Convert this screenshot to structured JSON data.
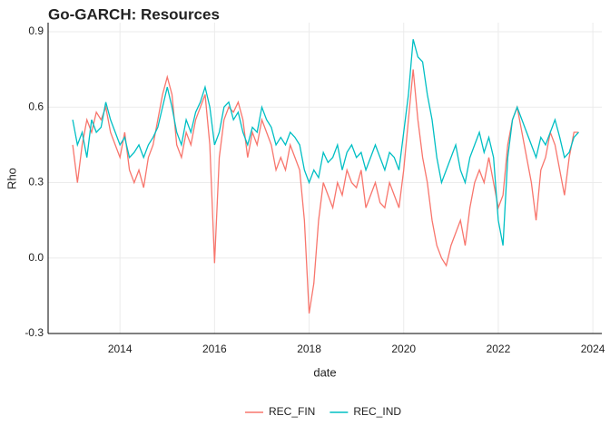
{
  "chart_data": {
    "type": "line",
    "title": "Go-GARCH: Resources",
    "x_label": "date",
    "y_label": "Rho",
    "x": [
      2013,
      2013.1,
      2013.2,
      2013.3,
      2013.4,
      2013.5,
      2013.6,
      2013.7,
      2013.8,
      2013.9,
      2014,
      2014.1,
      2014.2,
      2014.3,
      2014.4,
      2014.5,
      2014.6,
      2014.7,
      2014.8,
      2014.9,
      2015,
      2015.1,
      2015.2,
      2015.3,
      2015.4,
      2015.5,
      2015.6,
      2015.7,
      2015.8,
      2015.9,
      2016,
      2016.1,
      2016.2,
      2016.3,
      2016.4,
      2016.5,
      2016.6,
      2016.7,
      2016.8,
      2016.9,
      2017,
      2017.1,
      2017.2,
      2017.3,
      2017.4,
      2017.5,
      2017.6,
      2017.7,
      2017.8,
      2017.9,
      2018,
      2018.1,
      2018.2,
      2018.3,
      2018.4,
      2018.5,
      2018.6,
      2018.7,
      2018.8,
      2018.9,
      2019,
      2019.1,
      2019.2,
      2019.3,
      2019.4,
      2019.5,
      2019.6,
      2019.7,
      2019.8,
      2019.9,
      2020,
      2020.1,
      2020.2,
      2020.3,
      2020.4,
      2020.5,
      2020.6,
      2020.7,
      2020.8,
      2020.9,
      2021,
      2021.1,
      2021.2,
      2021.3,
      2021.4,
      2021.5,
      2021.6,
      2021.7,
      2021.8,
      2021.9,
      2022,
      2022.1,
      2022.2,
      2022.3,
      2022.4,
      2022.5,
      2022.6,
      2022.7,
      2022.8,
      2022.9,
      2023,
      2023.1,
      2023.2,
      2023.3,
      2023.4,
      2023.5,
      2023.6,
      2023.7
    ],
    "series": [
      {
        "name": "REC_FIN",
        "color": "#f8766d",
        "values": [
          0.45,
          0.3,
          0.45,
          0.55,
          0.5,
          0.58,
          0.55,
          0.6,
          0.5,
          0.45,
          0.4,
          0.5,
          0.35,
          0.3,
          0.35,
          0.28,
          0.4,
          0.45,
          0.55,
          0.65,
          0.72,
          0.65,
          0.45,
          0.4,
          0.5,
          0.45,
          0.55,
          0.6,
          0.65,
          0.45,
          -0.02,
          0.4,
          0.55,
          0.6,
          0.58,
          0.62,
          0.55,
          0.4,
          0.5,
          0.45,
          0.55,
          0.5,
          0.45,
          0.35,
          0.4,
          0.35,
          0.45,
          0.4,
          0.35,
          0.15,
          -0.22,
          -0.1,
          0.15,
          0.3,
          0.25,
          0.2,
          0.3,
          0.25,
          0.35,
          0.3,
          0.28,
          0.35,
          0.2,
          0.25,
          0.3,
          0.22,
          0.2,
          0.3,
          0.25,
          0.2,
          0.35,
          0.55,
          0.75,
          0.55,
          0.4,
          0.3,
          0.15,
          0.05,
          0.0,
          -0.03,
          0.05,
          0.1,
          0.15,
          0.05,
          0.2,
          0.3,
          0.35,
          0.3,
          0.4,
          0.3,
          0.2,
          0.25,
          0.45,
          0.55,
          0.6,
          0.5,
          0.4,
          0.3,
          0.15,
          0.35,
          0.4,
          0.5,
          0.45,
          0.35,
          0.25,
          0.4,
          0.5,
          0.5
        ]
      },
      {
        "name": "REC_IND",
        "color": "#00bfc4",
        "values": [
          0.55,
          0.45,
          0.5,
          0.4,
          0.55,
          0.5,
          0.52,
          0.62,
          0.55,
          0.5,
          0.45,
          0.48,
          0.4,
          0.42,
          0.45,
          0.4,
          0.45,
          0.48,
          0.52,
          0.6,
          0.68,
          0.6,
          0.5,
          0.45,
          0.55,
          0.5,
          0.58,
          0.62,
          0.68,
          0.6,
          0.45,
          0.5,
          0.6,
          0.62,
          0.55,
          0.58,
          0.5,
          0.45,
          0.52,
          0.5,
          0.6,
          0.55,
          0.52,
          0.45,
          0.48,
          0.45,
          0.5,
          0.48,
          0.45,
          0.35,
          0.3,
          0.35,
          0.32,
          0.42,
          0.38,
          0.4,
          0.45,
          0.35,
          0.42,
          0.45,
          0.4,
          0.42,
          0.35,
          0.4,
          0.45,
          0.4,
          0.35,
          0.42,
          0.4,
          0.35,
          0.5,
          0.65,
          0.87,
          0.8,
          0.78,
          0.65,
          0.55,
          0.4,
          0.3,
          0.35,
          0.4,
          0.45,
          0.35,
          0.3,
          0.4,
          0.45,
          0.5,
          0.42,
          0.48,
          0.4,
          0.15,
          0.05,
          0.4,
          0.55,
          0.6,
          0.55,
          0.5,
          0.45,
          0.4,
          0.48,
          0.45,
          0.5,
          0.55,
          0.48,
          0.4,
          0.42,
          0.48,
          0.5
        ]
      }
    ],
    "xlim": [
      2012.48,
      2024.19
    ],
    "xticks": [
      2014,
      2016,
      2018,
      2020,
      2022,
      2024
    ],
    "ylim": [
      -0.3,
      0.936
    ],
    "yticks": [
      -0.3,
      {
        "value": 0,
        "label": "0.0"
      },
      0.3,
      0.6,
      0.9
    ],
    "grid": true,
    "legend": "bottom"
  }
}
